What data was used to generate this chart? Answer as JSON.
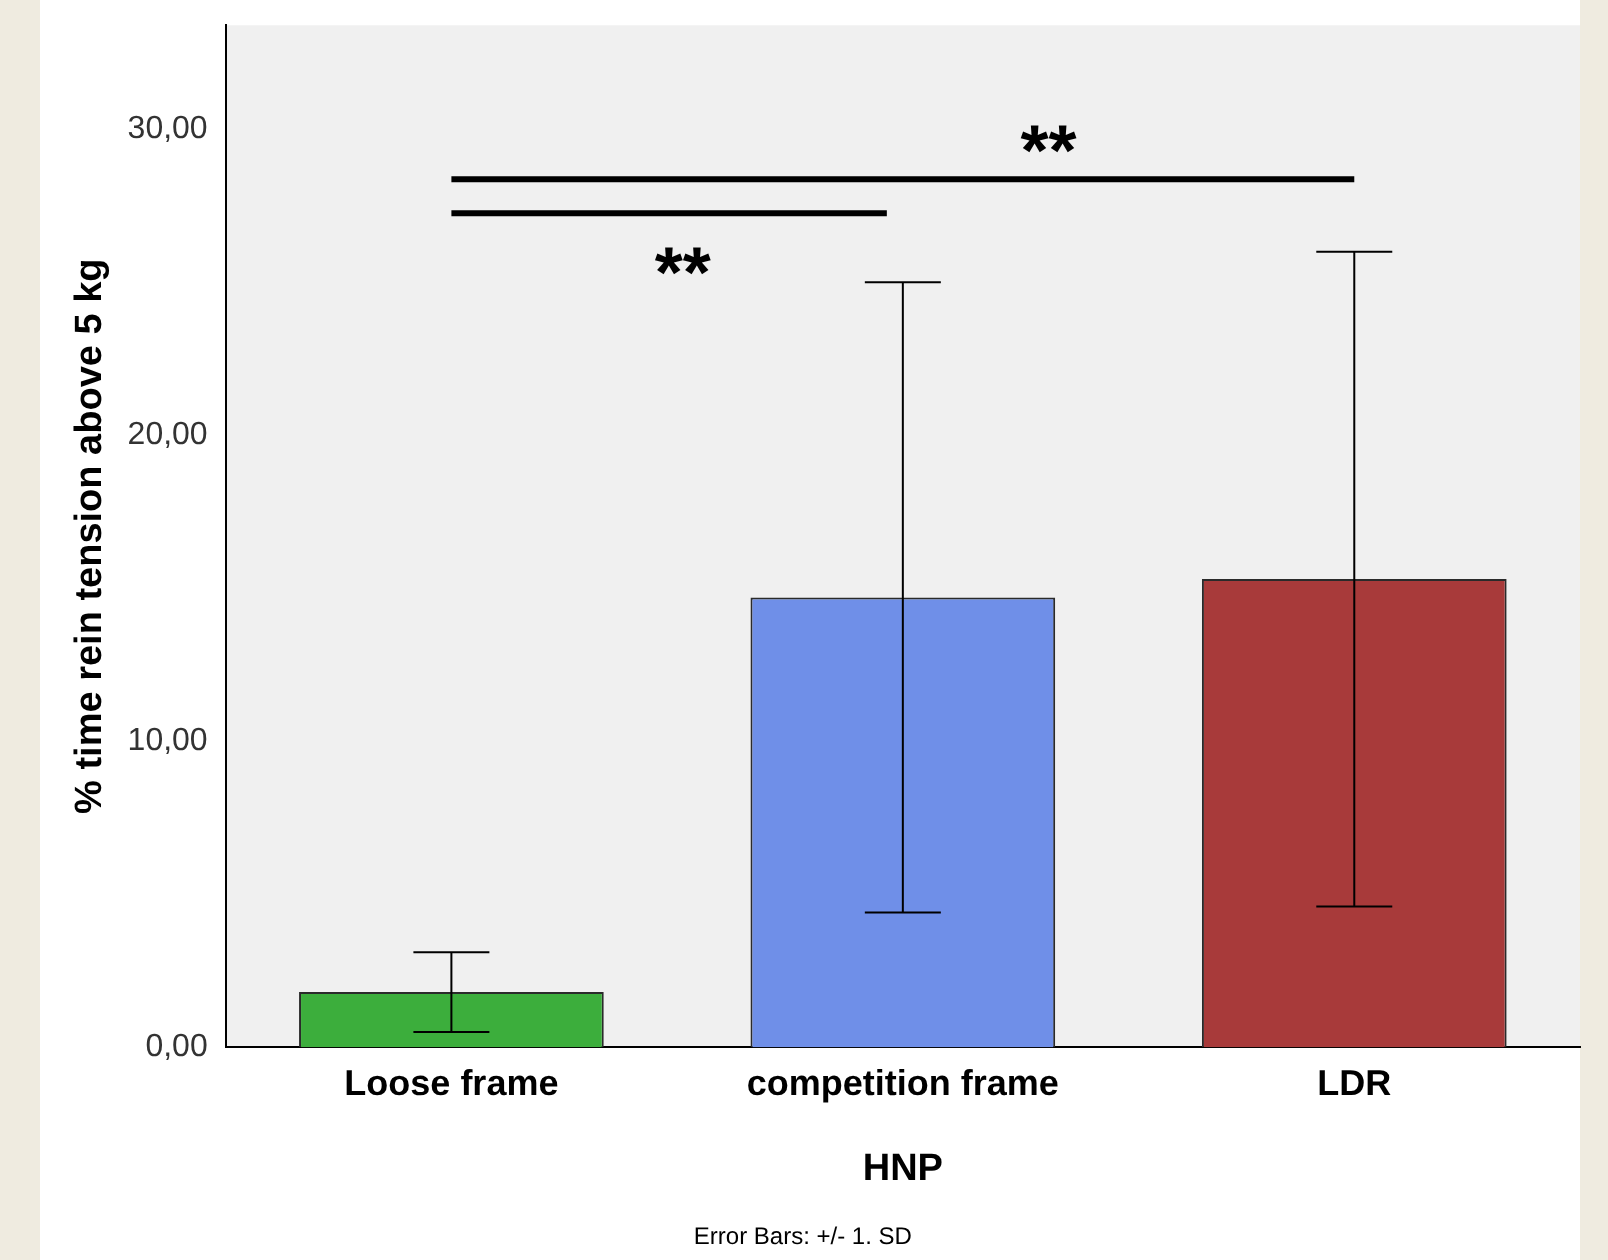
{
  "chart_data": {
    "type": "bar",
    "xlabel": "HNP",
    "ylabel": "% time rein tension above 5 kg",
    "categories": [
      "Loose frame",
      "competition frame",
      "LDR"
    ],
    "values": [
      1.8,
      14.7,
      15.3
    ],
    "colors": [
      "#3cae3c",
      "#6f8fe8",
      "#a83a3a"
    ],
    "errors": [
      [
        0.5,
        3.1
      ],
      [
        4.4,
        25.0
      ],
      [
        4.6,
        26.0
      ]
    ],
    "ylim": [
      0,
      33.4
    ],
    "yticks": [
      {
        "value": 0,
        "label": "0,00"
      },
      {
        "value": 10,
        "label": "10,00"
      },
      {
        "value": 20,
        "label": "20,00"
      },
      {
        "value": 30,
        "label": "30,00"
      }
    ],
    "annotations": [
      "**",
      "**",
      "Error Bars: +/- 1. SD"
    ]
  }
}
